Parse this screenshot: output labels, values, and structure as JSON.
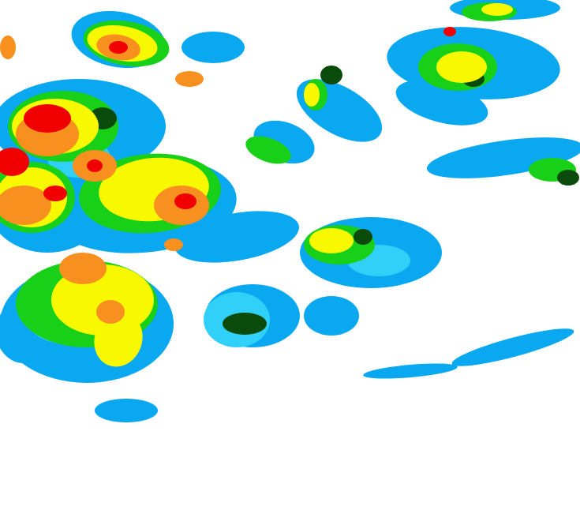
{
  "map": {
    "background": "#ffffff",
    "palette": {
      "light_blue": "#0aa8f0",
      "cyan": "#30d0f8",
      "green": "#18d018",
      "dark_green": "#0a4a0a",
      "yellow": "#f8f800",
      "orange": "#f89020",
      "red": "#f00000"
    }
  }
}
